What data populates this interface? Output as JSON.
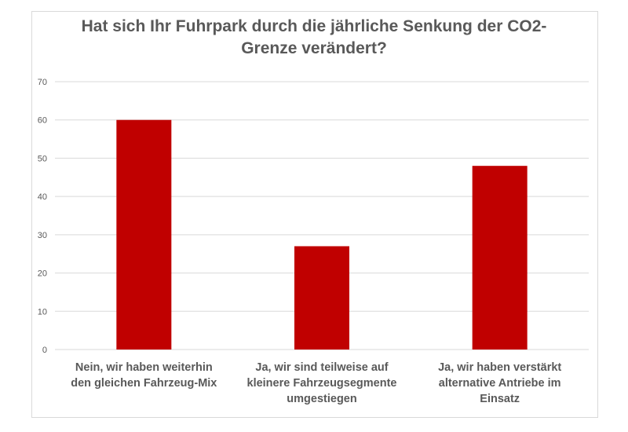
{
  "chart_data": {
    "type": "bar",
    "title_lines": [
      "Hat sich Ihr Fuhrpark durch die jährliche Senkung der CO2-",
      "Grenze verändert?"
    ],
    "categories": [
      [
        "Nein, wir haben weiterhin",
        "den gleichen Fahrzeug-Mix"
      ],
      [
        "Ja, wir sind teilweise auf",
        "kleinere Fahrzeugsegmente",
        "umgestiegen"
      ],
      [
        "Ja, wir haben verstärkt",
        "alternative Antriebe im",
        "Einsatz"
      ]
    ],
    "values": [
      60,
      27,
      48
    ],
    "ylim": [
      0,
      70
    ],
    "yticks": [
      0,
      10,
      20,
      30,
      40,
      50,
      60,
      70
    ],
    "grid": true,
    "bar_color": "#c00000",
    "grid_color": "#d9d9d9"
  }
}
